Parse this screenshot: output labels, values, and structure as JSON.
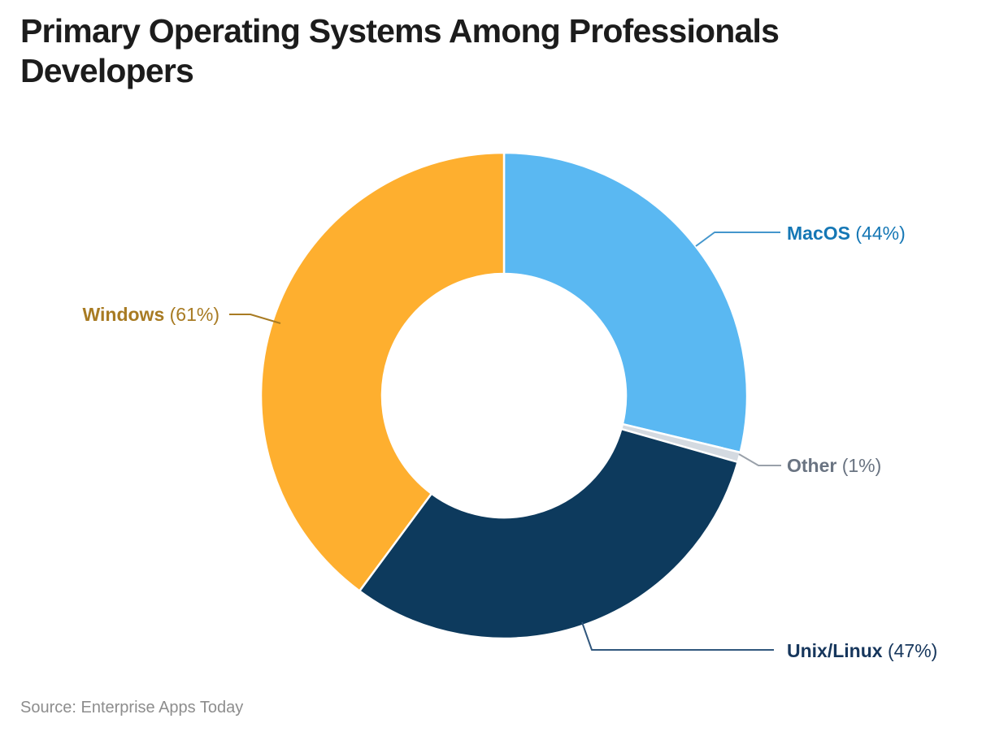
{
  "header": {
    "title_line1": "Primary Operating Systems Among Professionals",
    "title_line2": "Developers"
  },
  "footer": {
    "source": "Source: Enterprise Apps Today"
  },
  "chart_data": {
    "type": "pie",
    "subtype": "donut",
    "title": "Primary Operating Systems Among Professionals Developers",
    "unit": "%",
    "direction": "clockwise",
    "start_position": "top",
    "inner_radius_ratio": 0.5,
    "background_color": "#ffffff",
    "separator_color": "#ffffff",
    "segments": [
      {
        "label": "MacOS",
        "value": 44,
        "pct_text": "(44%)",
        "color": "#5AB8F2",
        "label_color": "#1577B5",
        "line_color": "#4496CC"
      },
      {
        "label": "Other",
        "value": 1,
        "pct_text": "(1%)",
        "color": "#D4DAE1",
        "label_color": "#6A7482",
        "line_color": "#9AA1AA"
      },
      {
        "label": "Unix/Linux",
        "value": 47,
        "pct_text": "(47%)",
        "color": "#0D3A5D",
        "label_color": "#16365C",
        "line_color": "#31577D"
      },
      {
        "label": "Windows",
        "value": 61,
        "pct_text": "(61%)",
        "color": "#FEAF2F",
        "label_color": "#A87B23",
        "line_color": "#A87B23"
      }
    ],
    "source": "Source: Enterprise Apps Today",
    "title_color": "#1c1c1c",
    "source_color": "#8d8d8d"
  }
}
